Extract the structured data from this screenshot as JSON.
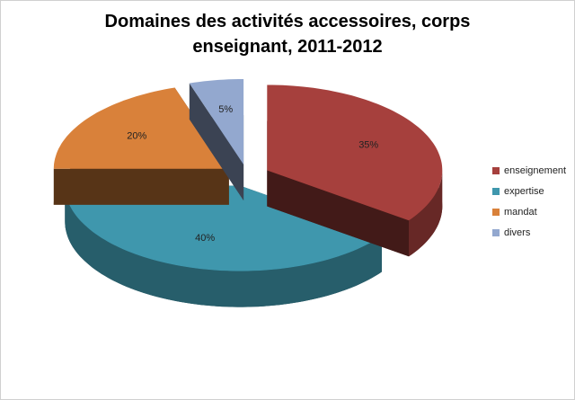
{
  "chart_data": {
    "type": "pie",
    "title": "Domaines des activités accessoires, corps enseignant, 2011-2012",
    "categories": [
      "enseignement",
      "expertise",
      "mandat",
      "divers"
    ],
    "values": [
      35,
      40,
      20,
      5
    ],
    "value_labels": [
      "35%",
      "40%",
      "20%",
      "5%"
    ],
    "colors": [
      "#a6403d",
      "#3f97ad",
      "#d9813a",
      "#93a8cf"
    ],
    "legend": "right"
  }
}
